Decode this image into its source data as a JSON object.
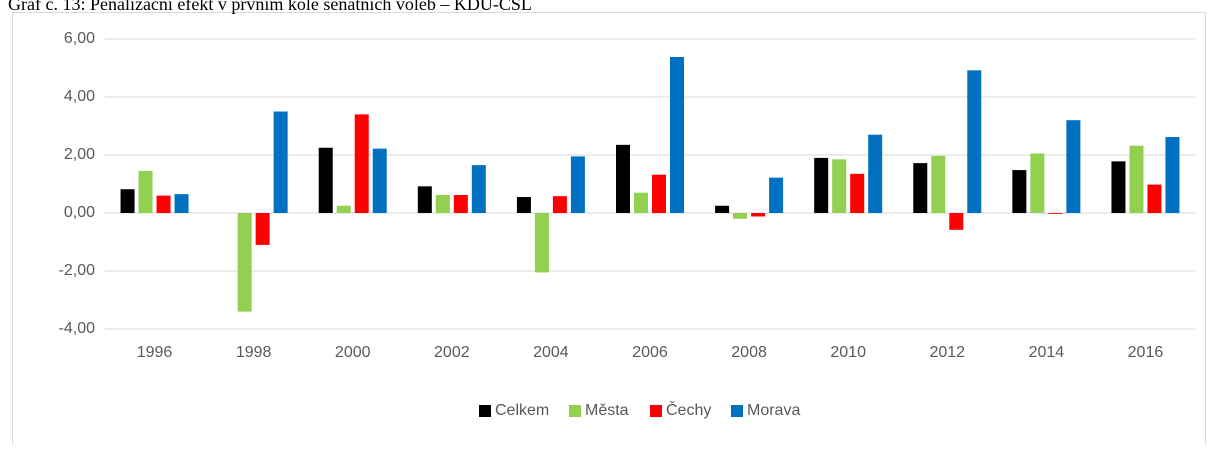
{
  "chart_data": {
    "type": "bar",
    "title": "Graf č. 13: Penalizační efekt v prvním kole senátních voleb – KDU-ČSL",
    "categories": [
      "1996",
      "1998",
      "2000",
      "2002",
      "2004",
      "2006",
      "2008",
      "2010",
      "2012",
      "2014",
      "2016"
    ],
    "series": [
      {
        "name": "Celkem",
        "color": "#000000",
        "values": [
          0.82,
          0,
          2.25,
          0.92,
          0.55,
          2.35,
          0.25,
          1.9,
          1.72,
          1.48,
          1.78
        ]
      },
      {
        "name": "Města",
        "color": "#92d050",
        "values": [
          1.45,
          -3.4,
          0.25,
          0.62,
          -2.05,
          0.7,
          -0.2,
          1.85,
          1.97,
          2.05,
          2.32
        ]
      },
      {
        "name": "Čechy",
        "color": "#ff0000",
        "values": [
          0.6,
          -1.1,
          3.4,
          0.62,
          0.58,
          1.32,
          -0.12,
          1.35,
          -0.58,
          -0.03,
          0.98
        ]
      },
      {
        "name": "Morava",
        "color": "#0070c0",
        "values": [
          0.65,
          3.5,
          2.22,
          1.65,
          1.95,
          5.38,
          1.22,
          2.7,
          4.92,
          3.2,
          2.62
        ]
      }
    ],
    "ylim": [
      -4,
      6
    ],
    "yticks": [
      {
        "value": -4,
        "label": "-4,00"
      },
      {
        "value": -2,
        "label": "-2,00"
      },
      {
        "value": 0,
        "label": "0,00"
      },
      {
        "value": 2,
        "label": "2,00"
      },
      {
        "value": 4,
        "label": "4,00"
      },
      {
        "value": 6,
        "label": "6,00"
      }
    ],
    "grid": true,
    "legend": "bottom"
  }
}
